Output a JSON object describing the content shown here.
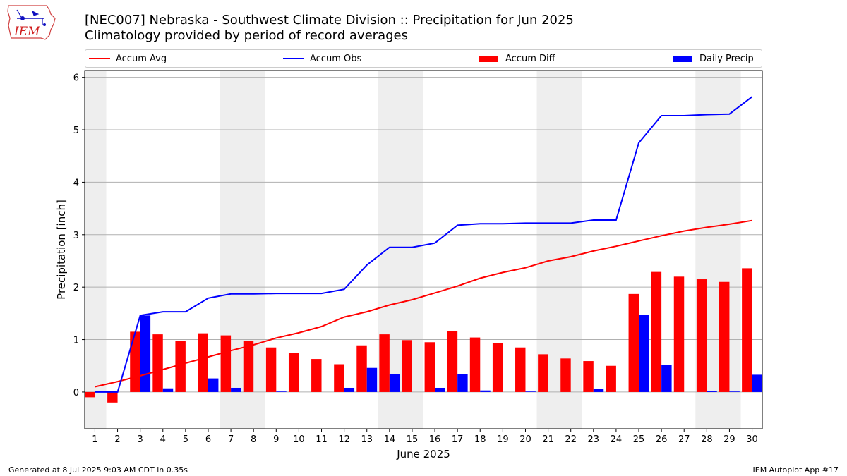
{
  "logo_text": "IEM",
  "title_line1": "[NEC007] Nebraska - Southwest Climate Division :: Precipitation for Jun 2025",
  "title_line2": "Climatology provided by period of record averages",
  "footer_left": "Generated at 8 Jul 2025 9:03 AM CDT in 0.35s",
  "footer_right": "IEM Autoplot App #17",
  "colors": {
    "avg": "#ff0000",
    "obs": "#0000ff",
    "diff": "#ff0000",
    "daily": "#0000ff",
    "weekend_band": "#eeeeee"
  },
  "chart_data": {
    "type": "bar",
    "xlabel": "June 2025",
    "ylabel": "Precipitation [inch]",
    "ylim": [
      -0.7,
      6.13
    ],
    "yticks": [
      0,
      1,
      2,
      3,
      4,
      5,
      6
    ],
    "grid": true,
    "legend_position": "top",
    "x": [
      1,
      2,
      3,
      4,
      5,
      6,
      7,
      8,
      9,
      10,
      11,
      12,
      13,
      14,
      15,
      16,
      17,
      18,
      19,
      20,
      21,
      22,
      23,
      24,
      25,
      26,
      27,
      28,
      29,
      30
    ],
    "shaded_days": [
      [
        1,
        1
      ],
      [
        7,
        8
      ],
      [
        14,
        15
      ],
      [
        21,
        22
      ],
      [
        28,
        29
      ]
    ],
    "series": [
      {
        "name": "Accum Avg",
        "kind": "line",
        "values": [
          0.1,
          0.2,
          0.31,
          0.43,
          0.55,
          0.67,
          0.79,
          0.9,
          1.03,
          1.13,
          1.25,
          1.43,
          1.53,
          1.66,
          1.76,
          1.89,
          2.02,
          2.17,
          2.28,
          2.37,
          2.5,
          2.58,
          2.69,
          2.78,
          2.88,
          2.98,
          3.07,
          3.14,
          3.2,
          3.27
        ]
      },
      {
        "name": "Accum Obs",
        "kind": "line",
        "values": [
          0.0,
          0.0,
          1.46,
          1.53,
          1.53,
          1.79,
          1.87,
          1.87,
          1.88,
          1.88,
          1.88,
          1.96,
          2.42,
          2.76,
          2.76,
          2.84,
          3.18,
          3.21,
          3.21,
          3.22,
          3.22,
          3.22,
          3.28,
          3.28,
          4.75,
          5.27,
          5.27,
          5.29,
          5.3,
          5.63
        ]
      },
      {
        "name": "Accum Diff",
        "kind": "bar",
        "values": [
          -0.1,
          -0.2,
          1.15,
          1.1,
          0.98,
          1.12,
          1.08,
          0.97,
          0.85,
          0.75,
          0.63,
          0.53,
          0.89,
          1.1,
          0.99,
          0.95,
          1.16,
          1.04,
          0.93,
          0.85,
          0.72,
          0.64,
          0.59,
          0.5,
          1.87,
          2.29,
          2.2,
          2.15,
          2.1,
          2.36
        ]
      },
      {
        "name": "Daily Precip",
        "kind": "bar",
        "values": [
          0.0,
          0.0,
          1.46,
          0.07,
          0.0,
          0.26,
          0.08,
          0.0,
          0.01,
          0.0,
          0.0,
          0.08,
          0.46,
          0.34,
          0.0,
          0.08,
          0.34,
          0.03,
          0.0,
          0.01,
          0.0,
          0.0,
          0.06,
          0.0,
          1.47,
          0.52,
          0.0,
          0.02,
          0.01,
          0.33
        ]
      }
    ]
  }
}
